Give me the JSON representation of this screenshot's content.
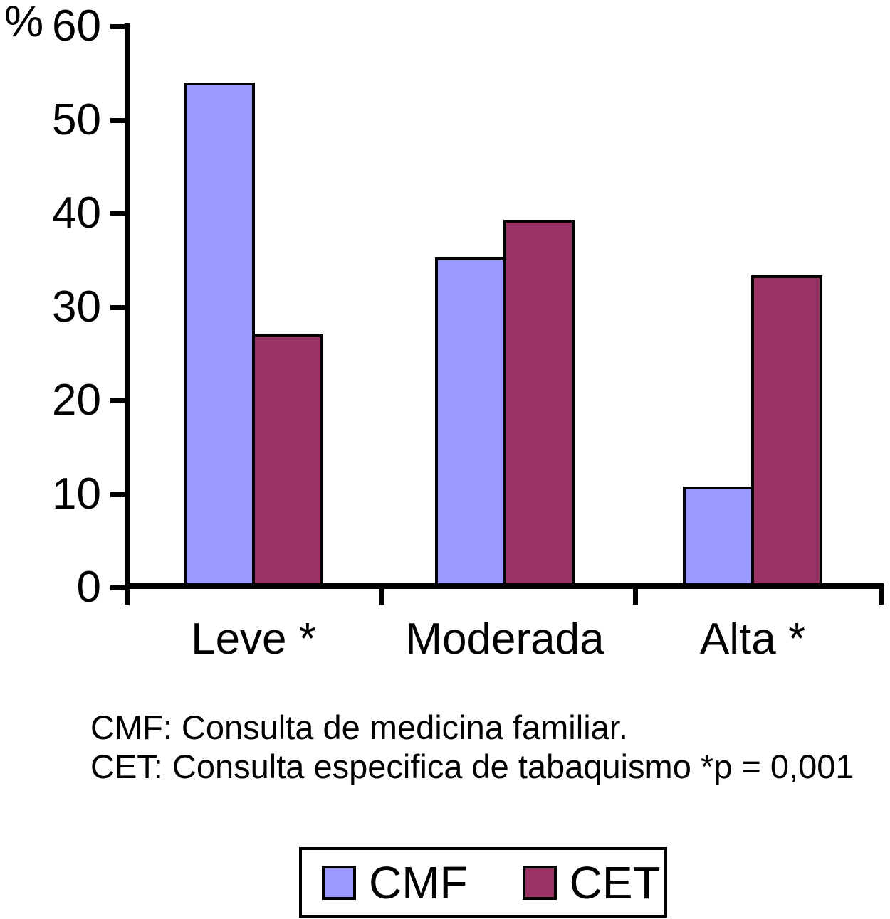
{
  "y_axis_unit_label": "%",
  "footnote": {
    "line1": "CMF: Consulta de medicina familiar.",
    "line2": "CET: Consulta especifica de tabaquismo *p = 0,001"
  },
  "legend": {
    "items": [
      {
        "label": "CMF",
        "color": "#9999FF"
      },
      {
        "label": "CET",
        "color": "#993366"
      }
    ]
  },
  "chart_data": {
    "type": "bar",
    "categories": [
      "Leve *",
      "Moderada",
      "Alta *"
    ],
    "series": [
      {
        "name": "CMF",
        "color": "#9999FF",
        "values": [
          54.0,
          35.3,
          10.8
        ]
      },
      {
        "name": "CET",
        "color": "#993366",
        "values": [
          27.1,
          39.3,
          33.4
        ]
      }
    ],
    "title": "",
    "xlabel": "",
    "ylabel": "%",
    "yticks": [
      0,
      10,
      20,
      30,
      40,
      50,
      60
    ],
    "ylim": [
      0,
      60
    ],
    "grid": false,
    "legend_position": "bottom",
    "bar_border_color": "#000000",
    "axis_color": "#000000"
  }
}
